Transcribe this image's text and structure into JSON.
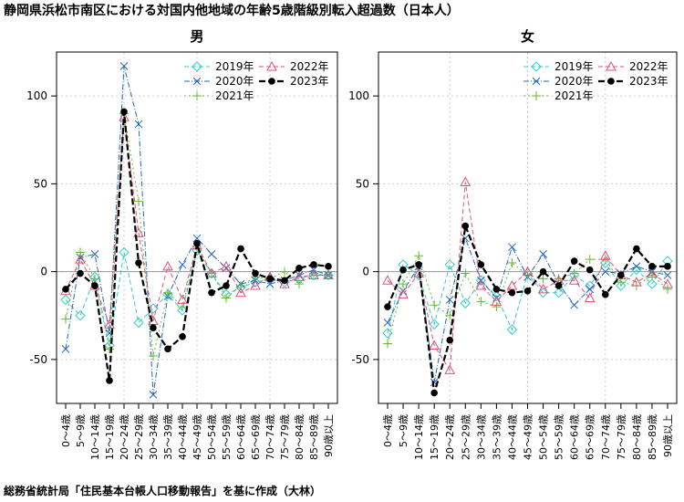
{
  "title": "静岡県浜松市南区における対国内他地域の年齢5歳階級別転入超過数（日本人）",
  "footer": "総務省統計局「住民基本台帳人口移動報告」を基に作成（大林）",
  "colors": {
    "2019年": "#33cccc",
    "2020年": "#2266bb",
    "2021年": "#66bb33",
    "2022年": "#dd5577",
    "2023年": "#000000"
  },
  "chart_data": [
    {
      "type": "line",
      "title": "男",
      "categories": [
        "0～4歳",
        "5～9歳",
        "10～14歳",
        "15～19歳",
        "20～24歳",
        "25～29歳",
        "30～34歳",
        "35～39歳",
        "40～44歳",
        "45～49歳",
        "50～54歳",
        "55～59歳",
        "60～64歳",
        "65～69歳",
        "70～74歳",
        "75～79歳",
        "80～84歳",
        "85～89歳",
        "90歳以上"
      ],
      "yticks": [
        -50,
        0,
        50,
        100
      ],
      "ylim": [
        -75,
        125
      ],
      "grid": true,
      "legend_position": "top-right",
      "series": [
        {
          "name": "2019年",
          "marker": "diamond",
          "values": [
            -16,
            -25,
            -3,
            -42,
            11,
            -29,
            -21,
            -13,
            -22,
            12,
            -1,
            -13,
            -9,
            -6,
            -4,
            -6,
            -4,
            -2,
            -2
          ]
        },
        {
          "name": "2020年",
          "marker": "x",
          "values": [
            -44,
            8,
            10,
            -35,
            117,
            84,
            -70,
            -14,
            4,
            19,
            10,
            2,
            -7,
            -5,
            -7,
            -5,
            -2,
            1,
            -2
          ]
        },
        {
          "name": "2021年",
          "marker": "plus",
          "values": [
            -27,
            11,
            -4,
            -44,
            90,
            40,
            -48,
            -12,
            -20,
            13,
            -1,
            -15,
            -8,
            -3,
            -4,
            0,
            -7,
            -1,
            -2
          ]
        },
        {
          "name": "2022年",
          "marker": "triangle",
          "values": [
            -11,
            7,
            -8,
            -30,
            88,
            22,
            -28,
            3,
            -16,
            15,
            -1,
            3,
            -12,
            -8,
            -3,
            -7,
            -3,
            -2,
            -2
          ]
        },
        {
          "name": "2023年",
          "marker": "dot",
          "values": [
            -10,
            -1,
            -8,
            -62,
            91,
            5,
            -32,
            -44,
            -37,
            16,
            -12,
            -8,
            13,
            -1,
            -4,
            -5,
            2,
            4,
            3
          ]
        }
      ]
    },
    {
      "type": "line",
      "title": "女",
      "categories": [
        "0～4歳",
        "5～9歳",
        "10～14歳",
        "15～19歳",
        "20～24歳",
        "25～29歳",
        "30～34歳",
        "35～39歳",
        "40～44歳",
        "45～49歳",
        "50～54歳",
        "55～59歳",
        "60～64歳",
        "65～69歳",
        "70～74歳",
        "75～79歳",
        "80～84歳",
        "85～89歳",
        "90歳以上"
      ],
      "yticks": [
        -50,
        0,
        50,
        100
      ],
      "ylim": [
        -75,
        125
      ],
      "grid": true,
      "legend_position": "top-right",
      "series": [
        {
          "name": "2019年",
          "marker": "diamond",
          "values": [
            -35,
            4,
            -2,
            -30,
            4,
            -18,
            -5,
            -14,
            -33,
            -1,
            -12,
            -12,
            -2,
            -8,
            5,
            -8,
            1,
            -7,
            6
          ]
        },
        {
          "name": "2020年",
          "marker": "x",
          "values": [
            -29,
            -11,
            3,
            -63,
            -16,
            19,
            -5,
            -15,
            14,
            -3,
            10,
            -7,
            -19,
            -10,
            0,
            -1,
            3,
            0,
            -2
          ]
        },
        {
          "name": "2021年",
          "marker": "plus",
          "values": [
            -41,
            -7,
            9,
            -19,
            -25,
            -1,
            -17,
            -20,
            5,
            -2,
            -4,
            -4,
            -1,
            7,
            7,
            -6,
            -8,
            -2,
            -10
          ]
        },
        {
          "name": "2022年",
          "marker": "triangle",
          "values": [
            -5,
            -13,
            -1,
            -42,
            -56,
            51,
            -8,
            -17,
            -8,
            0,
            -10,
            -5,
            -5,
            -15,
            9,
            -2,
            -6,
            -1,
            -7
          ]
        },
        {
          "name": "2023年",
          "marker": "dot",
          "values": [
            -20,
            1,
            4,
            -69,
            -39,
            26,
            4,
            -10,
            -12,
            -11,
            0,
            -8,
            6,
            1,
            -13,
            -2,
            13,
            3,
            3
          ]
        }
      ]
    }
  ]
}
